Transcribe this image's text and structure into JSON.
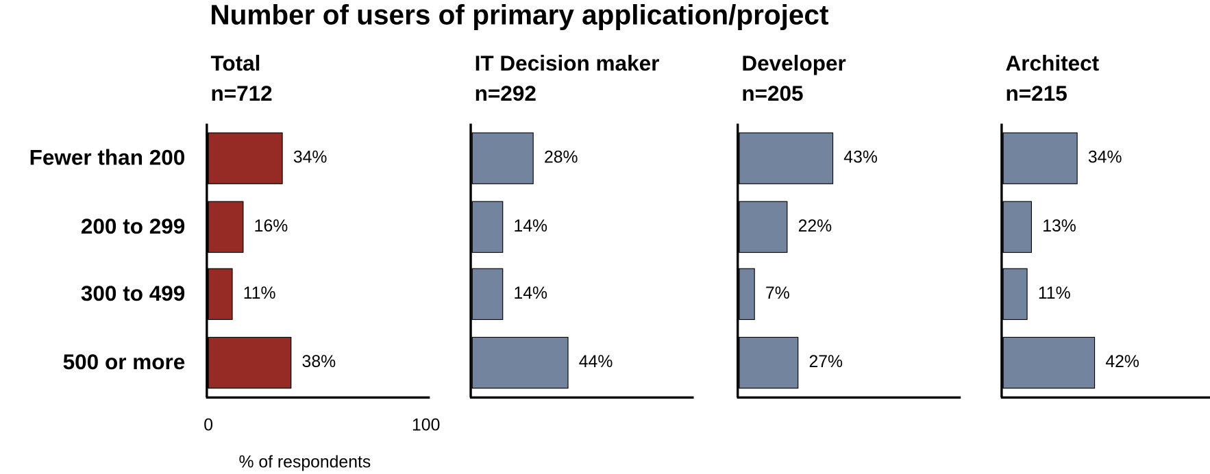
{
  "title": "Number of users of primary application/project",
  "chart_data": [
    {
      "type": "bar",
      "title": "Total",
      "subtitle": "n=712",
      "orientation": "horizontal",
      "categories": [
        "Fewer than 200",
        "200 to 299",
        "300 to 499",
        "500 or more"
      ],
      "values": [
        34,
        16,
        11,
        38
      ],
      "value_labels": [
        "34%",
        "16%",
        "11%",
        "38%"
      ],
      "color": "#962a25",
      "xlim": [
        0,
        100
      ],
      "xticks": [
        0,
        100
      ],
      "xlabel": "% of respondents"
    },
    {
      "type": "bar",
      "title": "IT Decision maker",
      "subtitle": "n=292",
      "orientation": "horizontal",
      "values": [
        28,
        14,
        14,
        44
      ],
      "value_labels": [
        "28%",
        "14%",
        "14%",
        "44%"
      ],
      "color": "#73849f",
      "xlim": [
        0,
        100
      ]
    },
    {
      "type": "bar",
      "title": "Developer",
      "subtitle": "n=205",
      "orientation": "horizontal",
      "values": [
        43,
        22,
        7,
        27
      ],
      "value_labels": [
        "43%",
        "22%",
        "7%",
        "27%"
      ],
      "color": "#73849f",
      "xlim": [
        0,
        100
      ]
    },
    {
      "type": "bar",
      "title": "Architect",
      "subtitle": "n=215",
      "orientation": "horizontal",
      "values": [
        34,
        13,
        11,
        42
      ],
      "value_labels": [
        "34%",
        "13%",
        "11%",
        "42%"
      ],
      "color": "#73849f",
      "xlim": [
        0,
        100
      ]
    }
  ]
}
